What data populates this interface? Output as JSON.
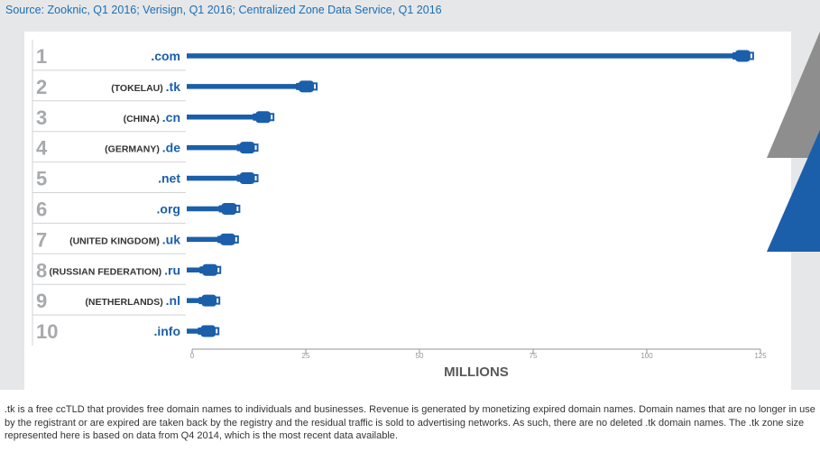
{
  "source": "Source: Zooknic, Q1 2016; Verisign, Q1 2016; Centralized Zone Data Service, Q1 2016",
  "footnote": ".tk is a free ccTLD that provides free domain names to individuals and businesses. Revenue is generated by monetizing expired domain names. Domain names that are no longer in use by the registrant or are expired are taken back by the registry and the residual traffic is sold to advertising networks. As such, there are no deleted .tk domain names. The .tk zone size represented here is based on data from Q4 2014, which is the most recent data available.",
  "colors": {
    "bar": "#1b5fab",
    "rank": "#a7a9ac",
    "label": "#1b5fab",
    "country": "#333333",
    "axis": "#939598",
    "panel": "#e6e7e8"
  },
  "chart_data": {
    "type": "bar",
    "orientation": "horizontal",
    "xlabel": "MILLIONS",
    "xlim": [
      0,
      125
    ],
    "xticks": [
      "0",
      "25",
      "50",
      "75",
      "100",
      "125"
    ],
    "grid": false,
    "rows": [
      {
        "rank": "1",
        "country": "",
        "tld": ".com",
        "value": 122
      },
      {
        "rank": "2",
        "country": "(TOKELAU)",
        "tld": ".tk",
        "value": 26
      },
      {
        "rank": "3",
        "country": "(CHINA)",
        "tld": ".cn",
        "value": 16.5
      },
      {
        "rank": "4",
        "country": "(GERMANY)",
        "tld": ".de",
        "value": 13
      },
      {
        "rank": "5",
        "country": "",
        "tld": ".net",
        "value": 13
      },
      {
        "rank": "6",
        "country": "",
        "tld": ".org",
        "value": 9
      },
      {
        "rank": "7",
        "country": "(UNITED KINGDOM)",
        "tld": ".uk",
        "value": 8.7
      },
      {
        "rank": "8",
        "country": "(RUSSIAN FEDERATION)",
        "tld": ".ru",
        "value": 4.8
      },
      {
        "rank": "9",
        "country": "(NETHERLANDS)",
        "tld": ".nl",
        "value": 4.6
      },
      {
        "rank": "10",
        "country": "",
        "tld": ".info",
        "value": 4.4
      }
    ]
  }
}
